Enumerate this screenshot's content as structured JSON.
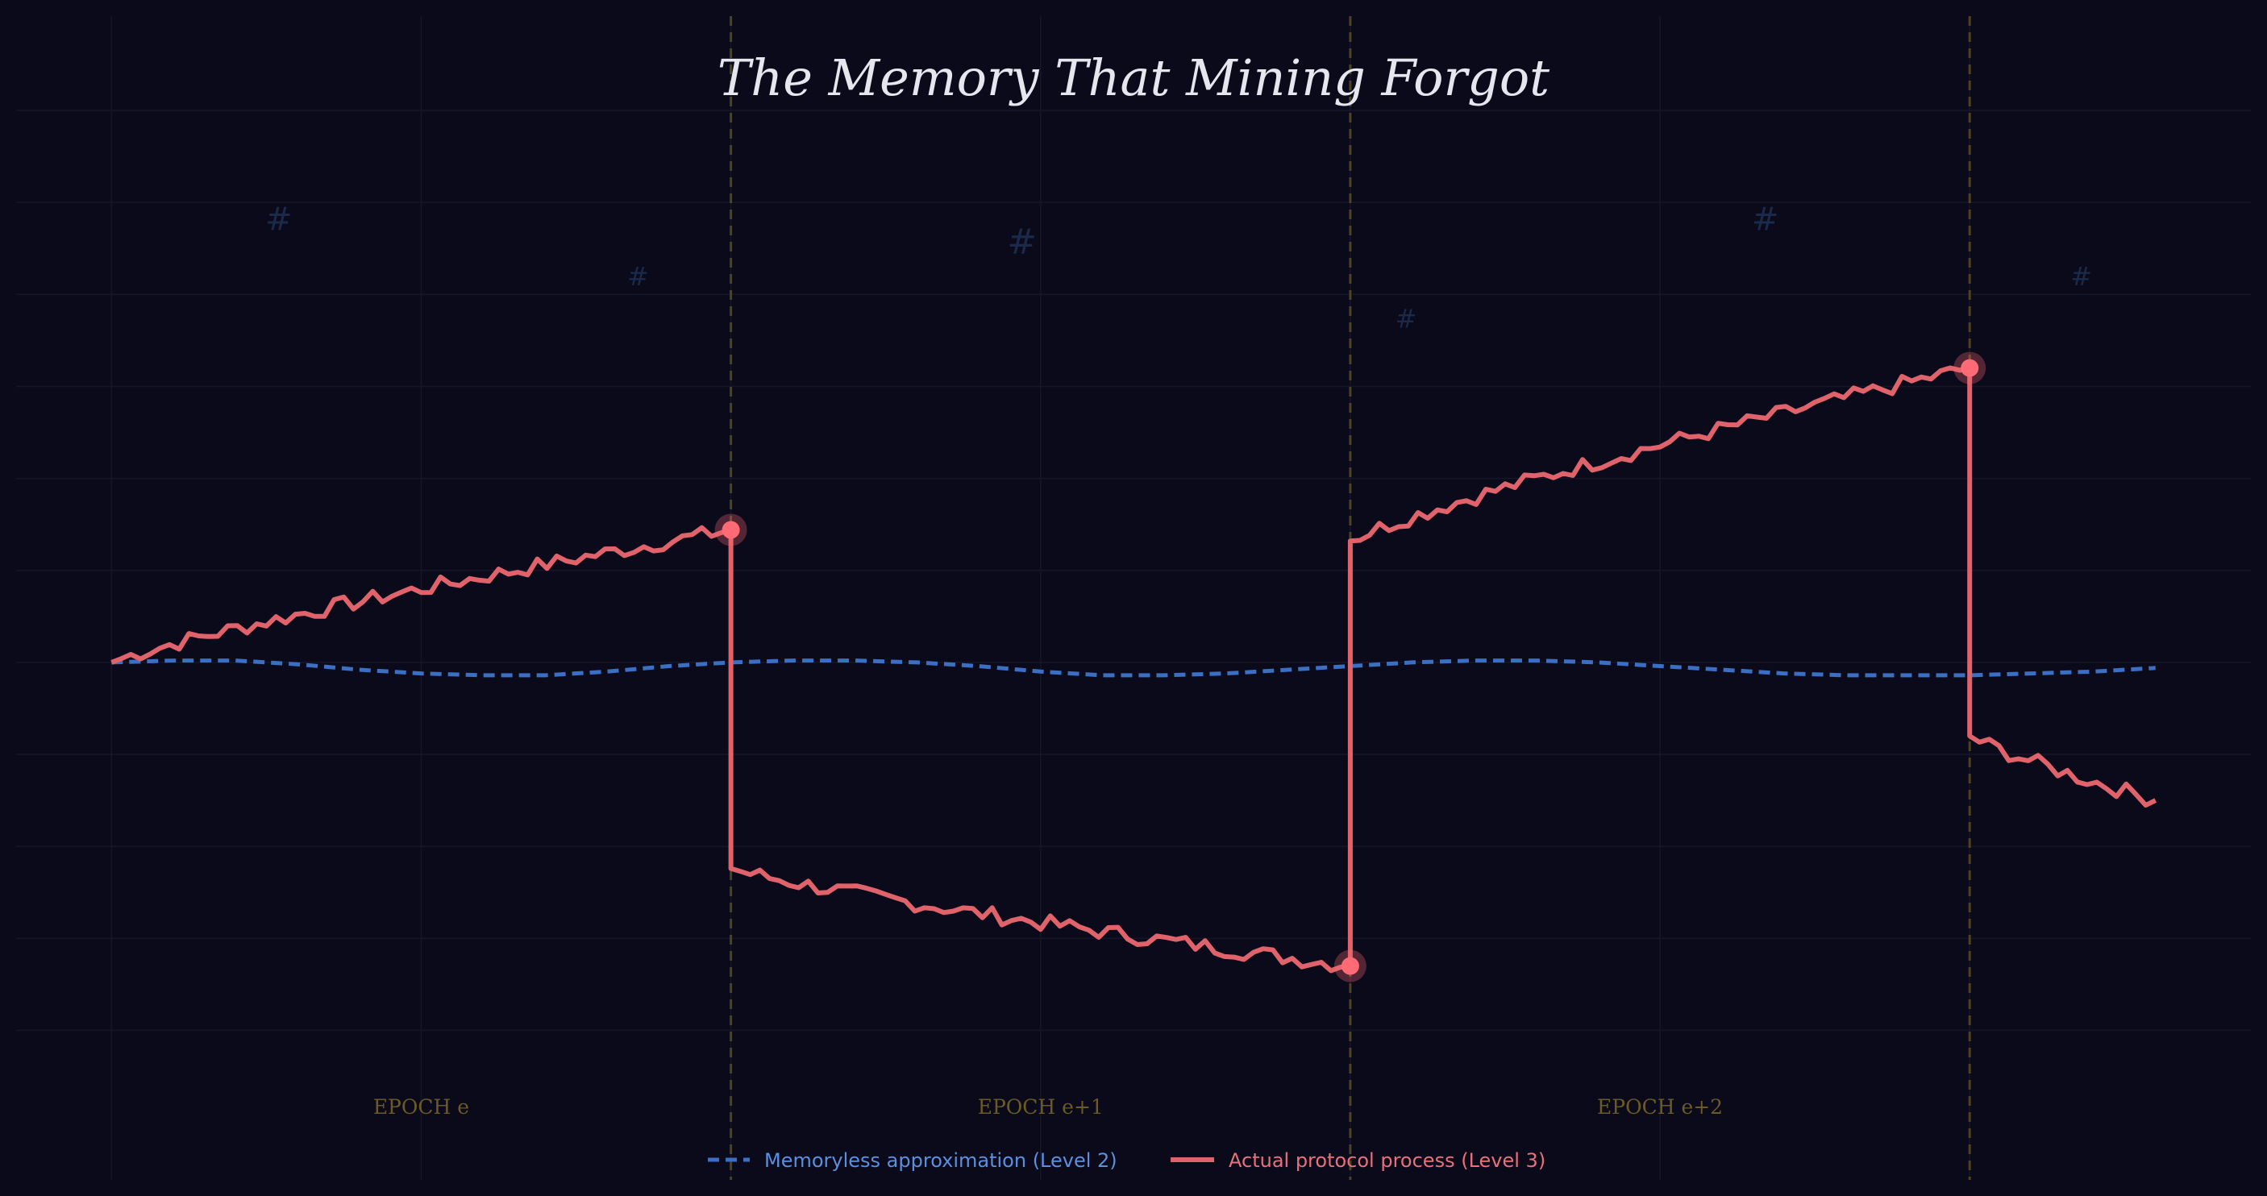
{
  "chart_data": {
    "type": "line",
    "title": "The Memory That Mining Forgot",
    "xlabel": "",
    "ylabel": "",
    "grid": true,
    "legend_position": "bottom-center",
    "epochs": [
      {
        "label": "EPOCH e",
        "start": 0,
        "end": 1
      },
      {
        "label": "EPOCH e+1",
        "start": 1,
        "end": 2
      },
      {
        "label": "EPOCH e+2",
        "start": 2,
        "end": 3
      }
    ],
    "epoch_boundaries": [
      1,
      2,
      3
    ],
    "hash_symbol": "#",
    "colors": {
      "background": "#0a0a1a",
      "memoryless": "#3a6fc4",
      "actual": "#e0636c",
      "actual_point": "#ff6b74",
      "boundary": "#4a4422",
      "epoch_label": "#6b5a26",
      "legend_memoryless_text": "#5b8fe0",
      "legend_actual_text": "#e8707a",
      "grid": "#161626",
      "hash": "#1b2a4a"
    },
    "series": [
      {
        "name": "Memoryless approximation (Level 2)",
        "style": "dashed",
        "x": [
          0,
          0.1,
          0.2,
          0.3,
          0.4,
          0.5,
          0.6,
          0.7,
          0.8,
          0.9,
          1.0,
          1.1,
          1.2,
          1.3,
          1.4,
          1.5,
          1.6,
          1.7,
          1.8,
          1.9,
          2.0,
          2.1,
          2.2,
          2.3,
          2.4,
          2.5,
          2.6,
          2.7,
          2.8,
          2.9,
          3.0,
          3.1,
          3.2,
          3.3
        ],
        "y": [
          0.0,
          0.01,
          0.01,
          -0.01,
          -0.04,
          -0.06,
          -0.07,
          -0.07,
          -0.05,
          -0.02,
          0.0,
          0.01,
          0.01,
          0.0,
          -0.02,
          -0.05,
          -0.07,
          -0.07,
          -0.06,
          -0.04,
          -0.02,
          0.0,
          0.01,
          0.01,
          0.0,
          -0.02,
          -0.04,
          -0.06,
          -0.07,
          -0.07,
          -0.07,
          -0.06,
          -0.05,
          -0.03
        ]
      },
      {
        "name": "Actual protocol process (Level 3)",
        "style": "solid",
        "segments": [
          {
            "x0": 0,
            "x1": 1,
            "y0": 0.0,
            "y1": 0.72
          },
          {
            "x0": 1,
            "x1": 2,
            "y0": -1.12,
            "y1": -1.65
          },
          {
            "x0": 2,
            "x1": 3,
            "y0": 0.66,
            "y1": 1.6
          },
          {
            "x0": 3,
            "x1": 3.3,
            "y0": -0.4,
            "y1": -0.75
          }
        ],
        "jump_points": [
          {
            "x": 1,
            "y": 0.72
          },
          {
            "x": 2,
            "y": -1.65
          },
          {
            "x": 3,
            "y": 1.6
          }
        ]
      }
    ],
    "xlim": [
      -0.18,
      3.48
    ],
    "ylim": [
      -2.9,
      3.6
    ],
    "hash_marks": [
      {
        "x": 0.27,
        "y": 2.35,
        "size": 40
      },
      {
        "x": 0.85,
        "y": 2.05,
        "size": 32
      },
      {
        "x": 1.47,
        "y": 2.22,
        "size": 44
      },
      {
        "x": 2.09,
        "y": 1.82,
        "size": 32
      },
      {
        "x": 2.67,
        "y": 2.35,
        "size": 40
      },
      {
        "x": 3.18,
        "y": 2.05,
        "size": 32
      }
    ]
  }
}
